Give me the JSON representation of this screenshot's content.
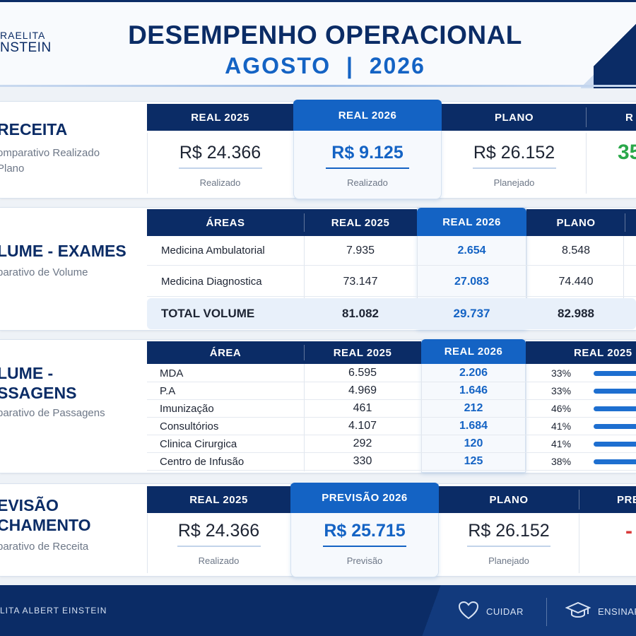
{
  "header": {
    "logo_line1": "RAELITA",
    "logo_line2": "NSTEIN",
    "title": "DESEMPENHO OPERACIONAL",
    "subtitle": "AGOSTO  |  2026"
  },
  "receita": {
    "title": "RECEITA",
    "subtitle": "omparativo Realizado\nPlano",
    "columns": [
      "REAL 2025",
      "REAL 2026",
      "PLANO",
      "R"
    ],
    "values": [
      "R$ 24.366",
      "R$ 9.125",
      "R$ 26.152",
      "35"
    ],
    "captions": [
      "Realizado",
      "Realizado",
      "Planejado"
    ]
  },
  "volume_exames": {
    "title": "LUME - EXAMES",
    "subtitle": "parativo de Volume",
    "columns": [
      "ÁREAS",
      "REAL 2025",
      "REAL 2026",
      "PLANO"
    ],
    "rows": [
      {
        "area": "Medicina Ambulatorial",
        "real2025": "7.935",
        "real2026": "2.654",
        "plano": "8.548"
      },
      {
        "area": "Medicina Diagnostica",
        "real2025": "73.147",
        "real2026": "27.083",
        "plano": "74.440"
      }
    ],
    "total": {
      "label": "TOTAL VOLUME",
      "real2025": "81.082",
      "real2026": "29.737",
      "plano": "82.988"
    }
  },
  "volume_passagens": {
    "title": "LUME -\nSSAGENS",
    "subtitle": "parativo de Passagens",
    "columns": [
      "ÁREA",
      "REAL 2025",
      "REAL 2026",
      "REAL 2025"
    ],
    "rows": [
      {
        "area": "MDA",
        "real2025": "6.595",
        "real2026": "2.206",
        "pct": "33%",
        "frac": 0.33
      },
      {
        "area": "P.A",
        "real2025": "4.969",
        "real2026": "1.646",
        "pct": "33%",
        "frac": 0.33
      },
      {
        "area": "Imunização",
        "real2025": "461",
        "real2026": "212",
        "pct": "46%",
        "frac": 0.46
      },
      {
        "area": "Consultórios",
        "real2025": "4.107",
        "real2026": "1.684",
        "pct": "41%",
        "frac": 0.41
      },
      {
        "area": "Clinica Cirurgica",
        "real2025": "292",
        "real2026": "120",
        "pct": "41%",
        "frac": 0.41
      },
      {
        "area": "Centro de Infusão",
        "real2025": "330",
        "real2026": "125",
        "pct": "38%",
        "frac": 0.38
      }
    ]
  },
  "previsao": {
    "title": "EVISÃO\nCHAMENTO",
    "subtitle": "parativo de Receita",
    "columns": [
      "REAL 2025",
      "PREVISÃO 2026",
      "PLANO",
      "PRE"
    ],
    "values": [
      "R$ 24.366",
      "R$ 25.715",
      "R$ 26.152",
      "-"
    ],
    "captions": [
      "Realizado",
      "Previsão",
      "Planejado"
    ]
  },
  "footer": {
    "text": "LITA ALBERT EINSTEIN",
    "items": [
      {
        "label": "CUIDAR",
        "icon": "heart-icon"
      },
      {
        "label": "ENSINAR",
        "icon": "graduation-cap-icon"
      }
    ]
  },
  "colors": {
    "navy": "#0b2c66",
    "accent": "#1463c4",
    "green": "#2aa84a",
    "red": "#d93a3a"
  }
}
